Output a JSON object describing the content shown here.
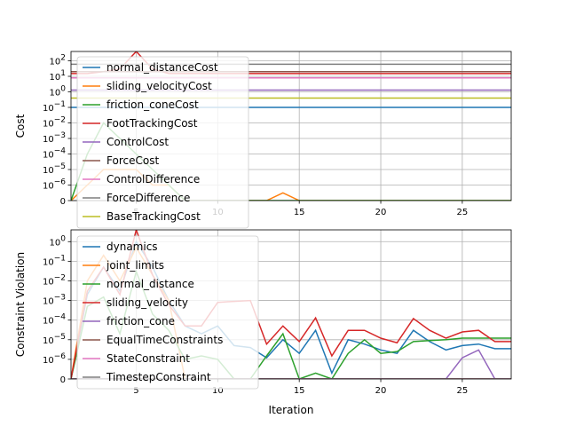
{
  "chart_data": [
    {
      "type": "line",
      "ylabel": "Cost",
      "xlabel": "",
      "xlim": [
        1,
        28
      ],
      "y_scale": "symlog",
      "xticks": [
        5,
        10,
        15,
        20,
        25
      ],
      "yticks": [
        {
          "value": 100,
          "label": "10^2"
        },
        {
          "value": 10,
          "label": "10^1"
        },
        {
          "value": 1,
          "label": "10^0"
        },
        {
          "value": 0.1,
          "label": "10^-1"
        },
        {
          "value": 0.01,
          "label": "10^-2"
        },
        {
          "value": 0.001,
          "label": "10^-3"
        },
        {
          "value": 0.0001,
          "label": "10^-4"
        },
        {
          "value": 1e-05,
          "label": "10^-5"
        },
        {
          "value": 1e-06,
          "label": "10^-6"
        },
        {
          "value": 0,
          "label": "0"
        }
      ],
      "grid": true,
      "legend_position": "left",
      "x": [
        1,
        2,
        3,
        4,
        5,
        6,
        7,
        8,
        9,
        10,
        11,
        12,
        13,
        14,
        15,
        16,
        17,
        18,
        19,
        20,
        21,
        22,
        23,
        24,
        25,
        26,
        27,
        28
      ],
      "series": [
        {
          "name": "normal_distanceCost",
          "color": "#1f77b4",
          "values": [
            0.1,
            0.1,
            0.1,
            0.1,
            0.1,
            0.1,
            0.1,
            0.1,
            0.1,
            0.1,
            0.1,
            0.1,
            0.1,
            0.1,
            0.1,
            0.1,
            0.1,
            0.1,
            0.1,
            0.1,
            0.1,
            0.1,
            0.1,
            0.1,
            0.1,
            0.1,
            0.1,
            0.1
          ]
        },
        {
          "name": "sliding_velocityCost",
          "color": "#ff7f0e",
          "values": [
            0,
            1e-06,
            1e-05,
            1e-05,
            1e-05,
            1e-06,
            1e-06,
            0,
            0,
            0,
            0,
            0,
            0,
            5e-07,
            0,
            0,
            0,
            0,
            0,
            0,
            0,
            0,
            0,
            0,
            0,
            0,
            0,
            0
          ]
        },
        {
          "name": "friction_coneCost",
          "color": "#2ca02c",
          "values": [
            0,
            0.0001,
            0.01,
            0.001,
            0.0001,
            1e-05,
            1e-06,
            0,
            0,
            0,
            0,
            0,
            0,
            0,
            0,
            0,
            0,
            0,
            0,
            0,
            0,
            0,
            0,
            0,
            0,
            0,
            0,
            0
          ]
        },
        {
          "name": "FootTrackingCost",
          "color": "#d62728",
          "values": [
            15,
            15,
            20,
            30,
            400,
            30,
            15,
            15,
            15,
            15,
            15,
            15,
            15,
            15,
            15,
            15,
            15,
            15,
            15,
            15,
            15,
            15,
            15,
            15,
            15,
            15,
            15,
            15
          ]
        },
        {
          "name": "ControlCost",
          "color": "#9467bd",
          "values": [
            1.3,
            1.3,
            1.3,
            1.3,
            1.3,
            1.3,
            1.3,
            1.3,
            1.3,
            1.3,
            1.3,
            1.3,
            1.3,
            1.3,
            1.3,
            1.3,
            1.3,
            1.3,
            1.3,
            1.3,
            1.3,
            1.3,
            1.3,
            1.3,
            1.3,
            1.3,
            1.3,
            1.3
          ]
        },
        {
          "name": "ForceCost",
          "color": "#8c564b",
          "values": [
            20,
            20,
            20,
            20,
            20,
            20,
            20,
            20,
            20,
            20,
            20,
            20,
            20,
            20,
            20,
            20,
            20,
            20,
            20,
            20,
            20,
            20,
            20,
            20,
            20,
            20,
            20,
            20
          ]
        },
        {
          "name": "ControlDifference",
          "color": "#e377c2",
          "values": [
            8,
            8,
            8,
            8,
            8,
            8,
            8,
            8,
            8,
            8,
            8,
            8,
            8,
            8,
            8,
            8,
            8,
            8,
            8,
            8,
            8,
            8,
            8,
            8,
            8,
            8,
            8,
            8
          ]
        },
        {
          "name": "ForceDifference",
          "color": "#7f7f7f",
          "values": [
            60,
            60,
            60,
            60,
            60,
            60,
            60,
            60,
            60,
            60,
            60,
            60,
            60,
            60,
            60,
            60,
            60,
            60,
            60,
            60,
            60,
            60,
            60,
            60,
            60,
            60,
            60,
            60
          ]
        },
        {
          "name": "BaseTrackingCost",
          "color": "#bcbd22",
          "values": [
            0.4,
            0.4,
            0.4,
            0.4,
            0.4,
            0.4,
            0.4,
            0.4,
            0.4,
            0.4,
            0.4,
            0.4,
            0.4,
            0.4,
            0.4,
            0.4,
            0.4,
            0.4,
            0.4,
            0.4,
            0.4,
            0.4,
            0.4,
            0.4,
            0.4,
            0.4,
            0.4,
            0.4
          ]
        }
      ]
    },
    {
      "type": "line",
      "ylabel": "Constraint Violation",
      "xlabel": "Iteration",
      "xlim": [
        1,
        28
      ],
      "y_scale": "symlog",
      "xticks": [
        5,
        10,
        15,
        20,
        25
      ],
      "yticks": [
        {
          "value": 1,
          "label": "10^0"
        },
        {
          "value": 0.1,
          "label": "10^-1"
        },
        {
          "value": 0.01,
          "label": "10^-2"
        },
        {
          "value": 0.001,
          "label": "10^-3"
        },
        {
          "value": 0.0001,
          "label": "10^-4"
        },
        {
          "value": 1e-05,
          "label": "10^-5"
        },
        {
          "value": 1e-06,
          "label": "10^-6"
        },
        {
          "value": 0,
          "label": "0"
        }
      ],
      "grid": true,
      "legend_position": "left",
      "x": [
        1,
        2,
        3,
        4,
        5,
        6,
        7,
        8,
        9,
        10,
        11,
        12,
        13,
        14,
        15,
        16,
        17,
        18,
        19,
        20,
        21,
        22,
        23,
        24,
        25,
        26,
        27,
        28
      ],
      "series": [
        {
          "name": "dynamics",
          "color": "#1f77b4",
          "values": [
            0,
            0.002,
            0.05,
            0.003,
            1,
            0.05,
            0.001,
            5e-05,
            2e-05,
            5e-05,
            5e-06,
            4e-06,
            1.2e-06,
            1e-05,
            2e-06,
            3e-05,
            3e-07,
            1e-05,
            6e-06,
            3e-06,
            2e-06,
            3e-05,
            8e-06,
            3e-06,
            5e-06,
            6e-06,
            3.5e-06,
            3.5e-06
          ]
        },
        {
          "name": "joint_limits",
          "color": "#ff7f0e",
          "values": [
            0,
            0.01,
            0.2,
            0.01,
            0.5,
            0.02,
            0.001,
            0,
            0,
            0,
            0,
            0,
            0,
            0,
            0,
            0,
            0,
            0,
            0,
            0,
            0,
            0,
            0,
            0,
            0,
            0,
            0,
            0
          ]
        },
        {
          "name": "normal_distance",
          "color": "#2ca02c",
          "values": [
            0,
            0.0005,
            0.0015,
            2e-05,
            0.03,
            0.0002,
            3e-05,
            1e-06,
            1.5e-06,
            1e-06,
            0,
            0,
            1.5e-06,
            2e-05,
            0,
            3e-07,
            0,
            2e-06,
            1e-05,
            2e-06,
            2.5e-06,
            8e-06,
            9e-06,
            1e-05,
            1.2e-05,
            1.2e-05,
            1.2e-05,
            1.2e-05
          ]
        },
        {
          "name": "sliding_velocity",
          "color": "#d62728",
          "values": [
            0,
            0.003,
            0.05,
            0.002,
            4,
            0.02,
            0.0006,
            5e-05,
            5e-05,
            0.0008,
            0.0009,
            0.001,
            6e-06,
            5e-05,
            8e-06,
            0.00013,
            1.5e-06,
            3e-05,
            3e-05,
            1.2e-05,
            7e-06,
            0.00012,
            3e-05,
            1.2e-05,
            2.5e-05,
            3e-05,
            8e-06,
            8e-06
          ]
        },
        {
          "name": "friction_cone",
          "color": "#9467bd",
          "values": [
            0,
            0,
            0,
            0,
            0,
            0,
            0,
            0,
            0,
            0,
            0,
            0,
            0,
            0,
            0,
            0,
            0,
            0,
            0,
            0,
            0,
            0,
            0,
            0,
            1.2e-06,
            3e-06,
            0,
            0
          ]
        },
        {
          "name": "EqualTimeConstraints",
          "color": "#8c564b",
          "values": [
            0,
            0,
            0,
            0,
            0,
            0,
            0,
            0,
            0,
            0,
            0,
            0,
            0,
            0,
            0,
            0,
            0,
            0,
            0,
            0,
            0,
            0,
            0,
            0,
            0,
            0,
            0,
            0
          ]
        },
        {
          "name": "StateConstraint",
          "color": "#e377c2",
          "values": [
            0,
            0,
            0,
            0,
            0,
            0,
            0,
            0,
            0,
            0,
            0,
            0,
            0,
            0,
            0,
            0,
            0,
            0,
            0,
            0,
            0,
            0,
            0,
            0,
            0,
            0,
            0,
            0
          ]
        },
        {
          "name": "TimestepConstraint",
          "color": "#7f7f7f",
          "values": [
            0,
            0,
            0,
            0,
            0,
            0,
            0,
            0,
            0,
            0,
            0,
            0,
            0,
            0,
            0,
            0,
            0,
            0,
            0,
            0,
            0,
            0,
            0,
            0,
            0,
            0,
            0,
            0
          ]
        }
      ]
    }
  ]
}
